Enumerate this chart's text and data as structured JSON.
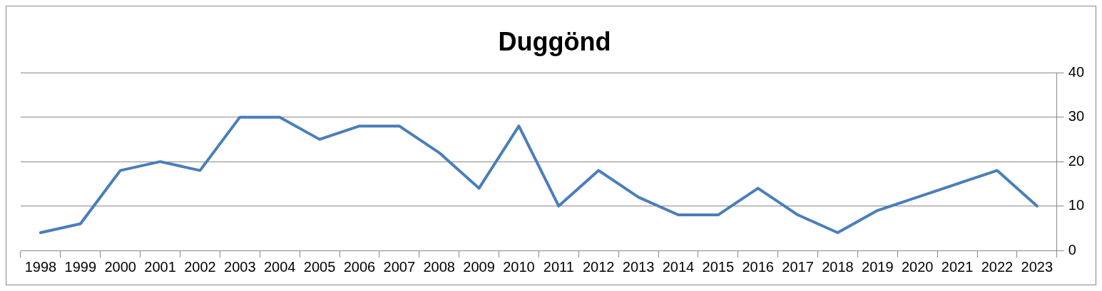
{
  "chart_data": {
    "type": "line",
    "title": "Duggönd",
    "categories": [
      "1998",
      "1999",
      "2000",
      "2001",
      "2002",
      "2003",
      "2004",
      "2005",
      "2006",
      "2007",
      "2008",
      "2009",
      "2010",
      "2011",
      "2012",
      "2013",
      "2014",
      "2015",
      "2016",
      "2017",
      "2018",
      "2019",
      "2020",
      "2021",
      "2022",
      "2023"
    ],
    "series": [
      {
        "color": "#4a7ebb",
        "values": [
          4,
          6,
          18,
          20,
          18,
          30,
          30,
          25,
          28,
          28,
          22,
          14,
          28,
          10,
          18,
          12,
          8,
          8,
          14,
          8,
          4,
          9,
          12,
          15,
          18,
          10
        ]
      }
    ],
    "ylim": [
      0,
      40
    ],
    "yticks": [
      0,
      10,
      20,
      30,
      40
    ],
    "grid": "y",
    "legend": false,
    "marker": "none",
    "line_style": "solid"
  }
}
